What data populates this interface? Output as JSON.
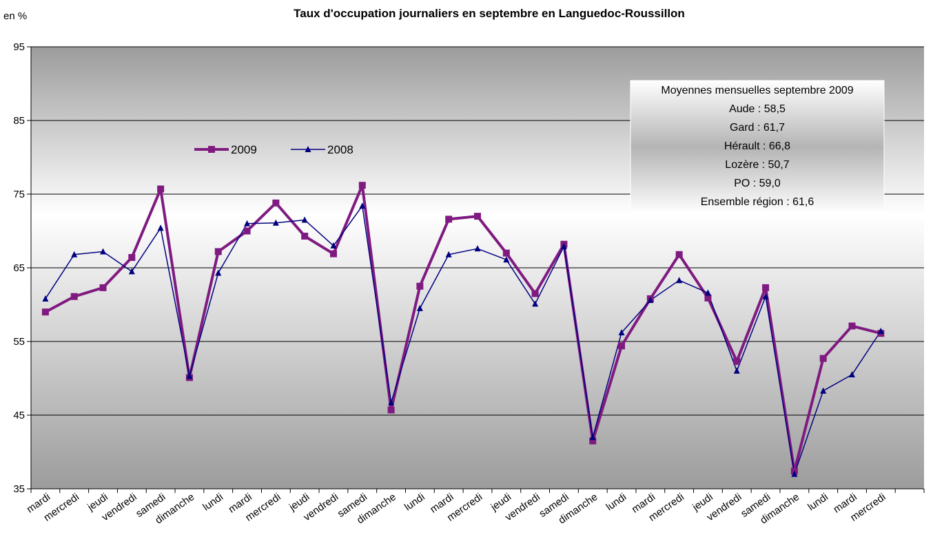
{
  "chart_data": {
    "type": "line",
    "title": "Taux d'occupation journaliers en septembre en Languedoc-Roussillon",
    "ylabel": "en %",
    "xlabel": "",
    "ylim": [
      35,
      95
    ],
    "yticks": [
      35,
      45,
      55,
      65,
      75,
      85,
      95
    ],
    "grid": true,
    "legend_position": "top-left",
    "categories": [
      "mardi",
      "mercredi",
      "jeudi",
      "vendredi",
      "samedi",
      "dimanche",
      "lundi",
      "mardi",
      "mercredi",
      "jeudi",
      "vendredi",
      "samedi",
      "dimanche",
      "lundi",
      "mardi",
      "mercredi",
      "jeudi",
      "vendredi",
      "samedi",
      "dimanche",
      "lundi",
      "mardi",
      "mercredi",
      "jeudi",
      "vendredi",
      "samedi",
      "dimanche",
      "lundi",
      "mardi",
      "mercredi"
    ],
    "series": [
      {
        "name": "2009",
        "color": "#7F1A80",
        "marker": "square",
        "values": [
          59.0,
          61.1,
          62.3,
          66.4,
          75.7,
          50.1,
          67.2,
          70.0,
          73.8,
          69.3,
          66.9,
          76.2,
          45.7,
          62.5,
          71.6,
          72.0,
          67.0,
          61.5,
          68.2,
          41.5,
          54.4,
          60.8,
          66.8,
          60.9,
          52.3,
          62.3,
          37.4,
          52.7,
          57.1,
          56.1
        ]
      },
      {
        "name": "2008",
        "color": "#000080",
        "marker": "triangle",
        "values": [
          60.8,
          66.8,
          67.2,
          64.5,
          70.4,
          50.3,
          64.3,
          71.0,
          71.1,
          71.5,
          68.0,
          73.4,
          46.7,
          59.5,
          66.8,
          67.6,
          66.1,
          60.1,
          67.9,
          42.0,
          56.2,
          60.6,
          63.3,
          61.6,
          51.0,
          61.1,
          37.0,
          48.3,
          50.5,
          56.4
        ]
      }
    ],
    "annotation": {
      "title": "Moyennes mensuelles septembre 2009",
      "lines": [
        "Aude : 58,5",
        "Gard : 61,7",
        "Hérault : 66,8",
        "Lozère : 50,7",
        "PO : 59,0",
        "Ensemble région : 61,6"
      ]
    }
  }
}
